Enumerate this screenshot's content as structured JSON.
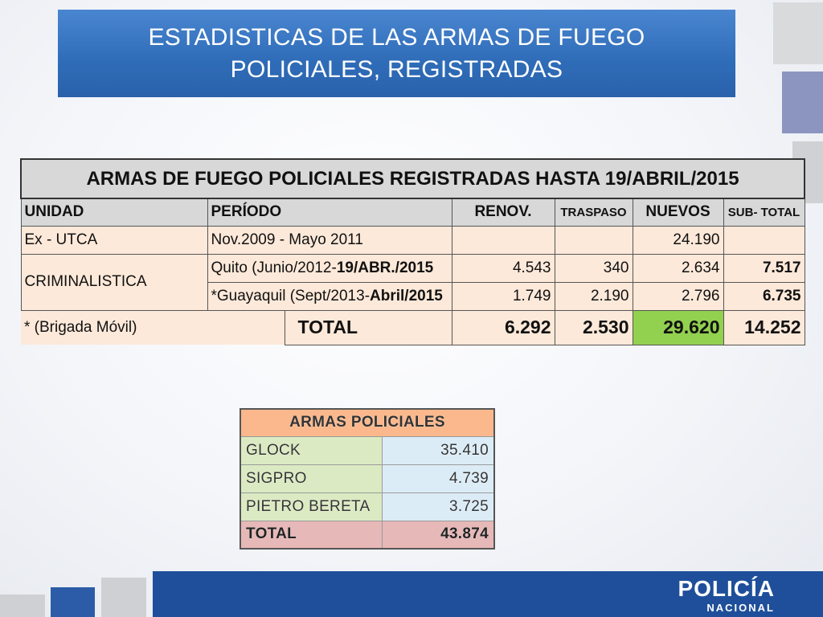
{
  "title": {
    "line1": "ESTADISTICAS DE LAS ARMAS DE FUEGO",
    "line2": "POLICIALES, REGISTRADAS"
  },
  "main_table": {
    "heading": "ARMAS DE FUEGO POLICIALES REGISTRADAS HASTA 19/ABRIL/2015",
    "columns": {
      "unidad": "UNIDAD",
      "periodo": "PERÍODO",
      "renov": "RENOV.",
      "traspaso": "TRASPASO",
      "nuevos": "NUEVOS",
      "subtotal": "SUB- TOTAL"
    },
    "rows": [
      {
        "unidad": "Ex - UTCA",
        "periodo": "Nov.2009 - Mayo 2011",
        "renov": "",
        "traspaso": "",
        "nuevos": "24.190",
        "subtotal": ""
      },
      {
        "unidad": "CRIMINALISTICA",
        "periodo_a": "Quito (Junio/2012-",
        "periodo_b": "19/ABR./2015",
        "renov": "4.543",
        "traspaso": "340",
        "nuevos": "2.634",
        "subtotal": "7.517"
      },
      {
        "periodo_a": "*Guayaquil (Sept/2013-",
        "periodo_b": "Abril/2015",
        "renov": "1.749",
        "traspaso": "2.190",
        "nuevos": "2.796",
        "subtotal": "6.735"
      }
    ],
    "note": "* (Brigada Móvil)",
    "total": {
      "label": "TOTAL",
      "renov": "6.292",
      "traspaso": "2.530",
      "nuevos": "29.620",
      "subtotal": "14.252"
    }
  },
  "arms_table": {
    "heading": "ARMAS POLICIALES",
    "rows": [
      {
        "label": "GLOCK",
        "value": "35.410"
      },
      {
        "label": "SIGPRO",
        "value": "4.739"
      },
      {
        "label": "PIETRO BERETA",
        "value": "3.725"
      }
    ],
    "total": {
      "label": "TOTAL",
      "value": "43.874"
    }
  },
  "logo": {
    "name": "POLICÍA",
    "sub": "NACIONAL"
  }
}
